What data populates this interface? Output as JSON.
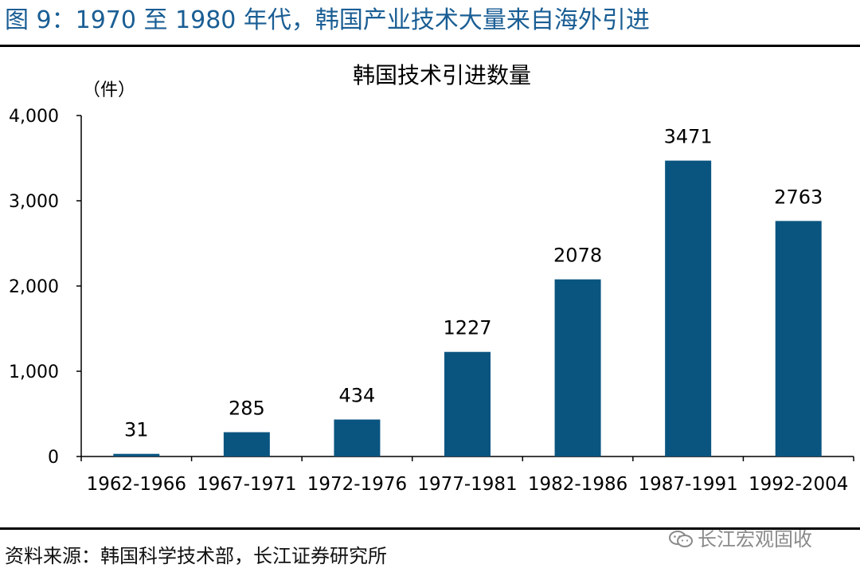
{
  "figure": {
    "title": "图 9：1970 至 1980 年代，韩国产业技术大量来自海外引进",
    "source": "资料来源：韩国科学技术部，长江证券研究所",
    "watermark": "长江宏观固收",
    "watermark_icon": "wechat-icon"
  },
  "colors": {
    "title": "#1a5e94",
    "bar": "#0a5580",
    "axis": "#000000"
  },
  "chart_data": {
    "type": "bar",
    "title": "韩国技术引进数量",
    "unit_label": "（件）",
    "categories": [
      "1962-1966",
      "1967-1971",
      "1972-1976",
      "1977-1981",
      "1982-1986",
      "1987-1991",
      "1992-2004"
    ],
    "values": [
      31,
      285,
      434,
      1227,
      2078,
      3471,
      2763
    ],
    "data_labels": [
      "31",
      "285",
      "434",
      "1227",
      "2078",
      "3471",
      "2763"
    ],
    "ylim": [
      0,
      4000
    ],
    "yticks": [
      0,
      1000,
      2000,
      3000,
      4000
    ],
    "ytick_labels": [
      "0",
      "1,000",
      "2,000",
      "3,000",
      "4,000"
    ],
    "grid": false,
    "legend": "none"
  }
}
